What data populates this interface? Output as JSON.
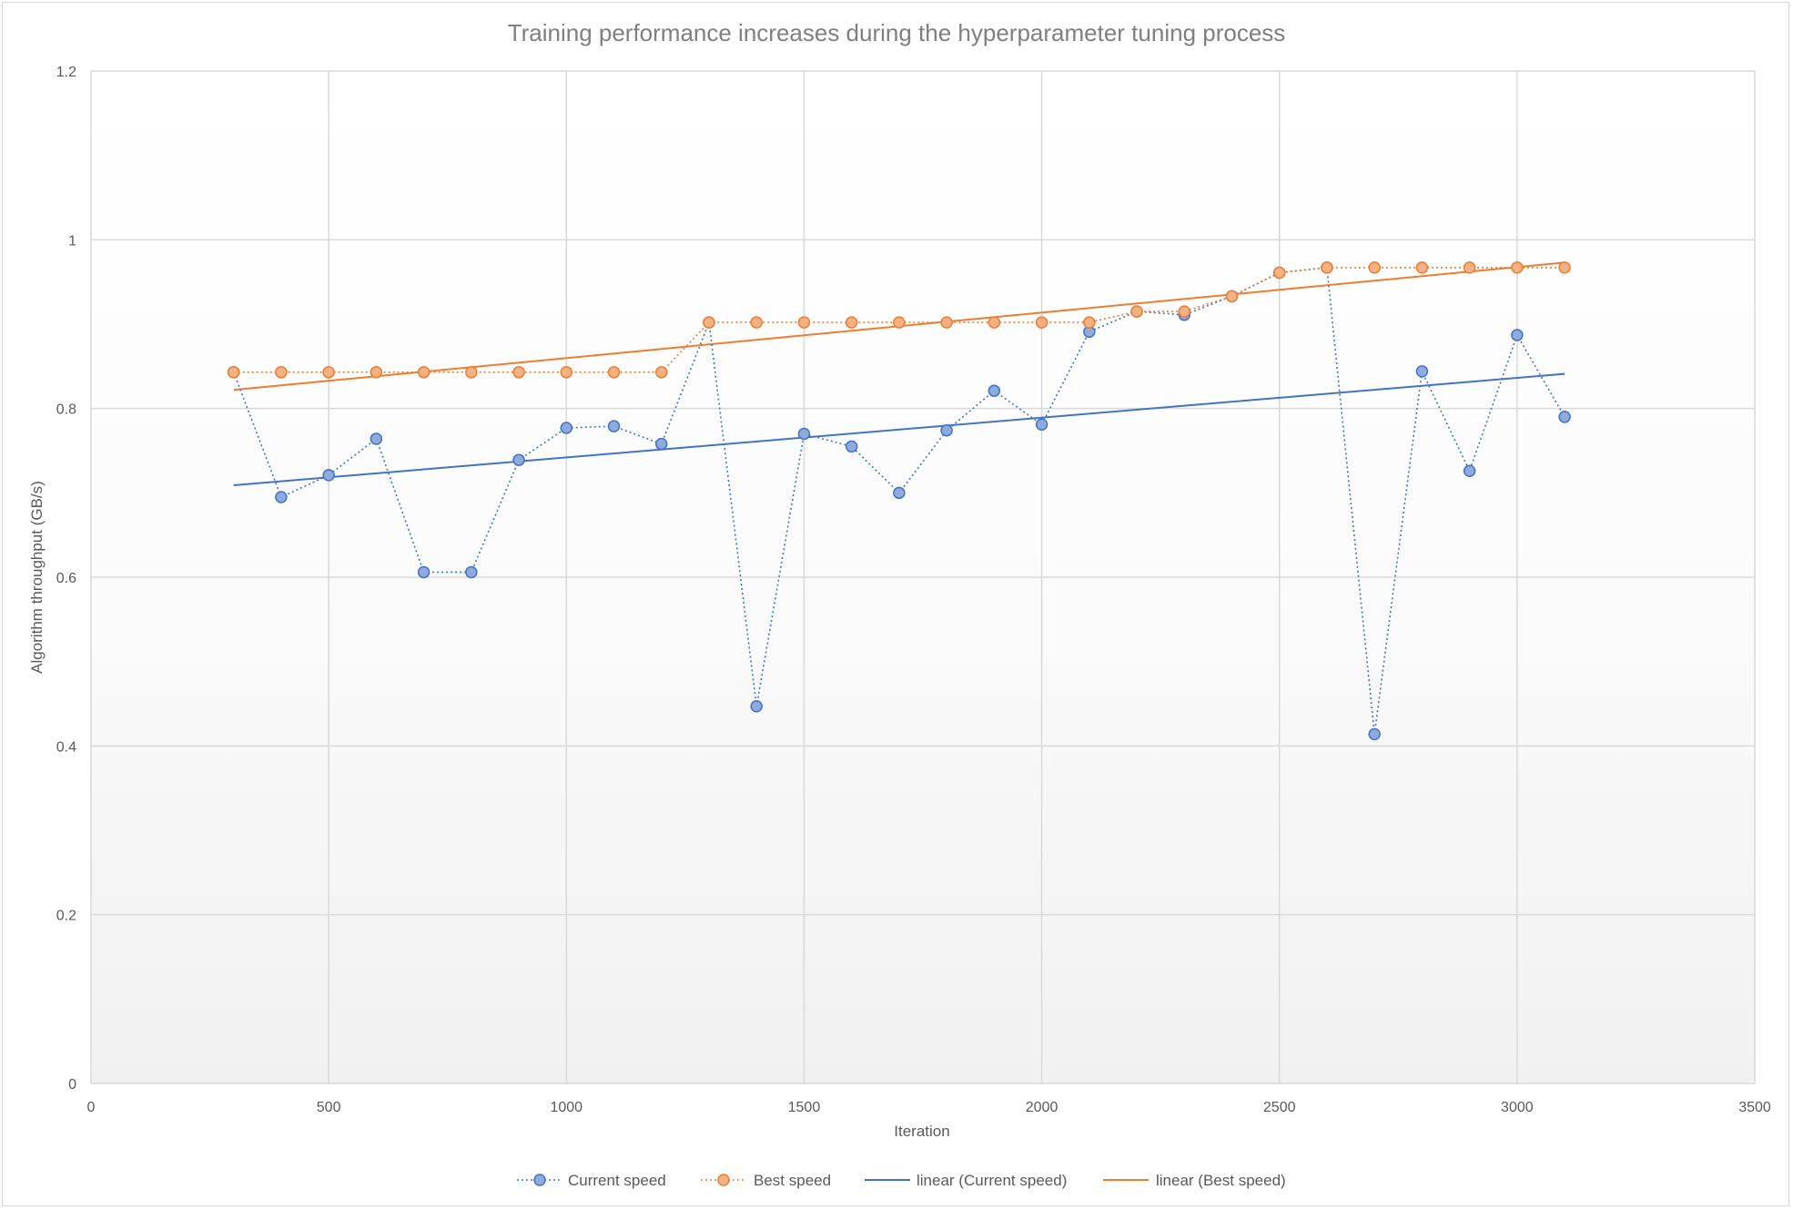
{
  "chart_data": {
    "type": "scatter",
    "title": "Training performance increases during the hyperparameter tuning process",
    "xlabel": "Iteration",
    "ylabel": "Algorithm throughput  (GB/s)",
    "xlim": [
      0,
      3500
    ],
    "ylim": [
      0,
      1.2
    ],
    "xticks": [
      0,
      500,
      1000,
      1500,
      2000,
      2500,
      3000,
      3500
    ],
    "yticks": [
      0,
      0.2,
      0.4,
      0.6,
      0.8,
      1,
      1.2
    ],
    "xtick_labels": [
      "0",
      "500",
      "1000",
      "1500",
      "2000",
      "2500",
      "3000",
      "3500"
    ],
    "ytick_labels": [
      "0",
      "0.2",
      "0.4",
      "0.6",
      "0.8",
      "1",
      "1.2"
    ],
    "grid": true,
    "legend_position": "bottom",
    "x": [
      300,
      400,
      500,
      600,
      700,
      800,
      900,
      1000,
      1100,
      1200,
      1300,
      1400,
      1500,
      1600,
      1700,
      1800,
      1900,
      2000,
      2100,
      2200,
      2300,
      2400,
      2500,
      2600,
      2700,
      2800,
      2900,
      3000,
      3100
    ],
    "series": [
      {
        "name": "Current speed",
        "color": "#4472c4",
        "fill": "#8faadc",
        "style": "dotted-line-with-markers",
        "values": [
          0.843,
          0.695,
          0.721,
          0.764,
          0.606,
          0.606,
          0.739,
          0.777,
          0.779,
          0.758,
          0.902,
          0.447,
          0.77,
          0.755,
          0.7,
          0.774,
          0.821,
          0.781,
          0.891,
          0.915,
          0.911,
          0.933,
          0.961,
          0.967,
          0.414,
          0.844,
          0.726,
          0.887,
          0.79
        ]
      },
      {
        "name": "Best speed",
        "color": "#ed7d31",
        "fill": "#f4b183",
        "style": "dotted-line-with-markers",
        "values": [
          0.843,
          0.843,
          0.843,
          0.843,
          0.843,
          0.843,
          0.843,
          0.843,
          0.843,
          0.843,
          0.902,
          0.902,
          0.902,
          0.902,
          0.902,
          0.902,
          0.902,
          0.902,
          0.902,
          0.915,
          0.915,
          0.933,
          0.961,
          0.967,
          0.967,
          0.967,
          0.967,
          0.967,
          0.967
        ]
      }
    ],
    "trendlines": [
      {
        "name": "linear (Current speed)",
        "color": "#4472c4",
        "type": "linear",
        "x_range": [
          300,
          3100
        ],
        "y_range": [
          0.709,
          0.841
        ]
      },
      {
        "name": "linear (Best speed)",
        "color": "#ed7d31",
        "type": "linear",
        "x_range": [
          300,
          3100
        ],
        "y_range": [
          0.822,
          0.973
        ]
      }
    ]
  }
}
